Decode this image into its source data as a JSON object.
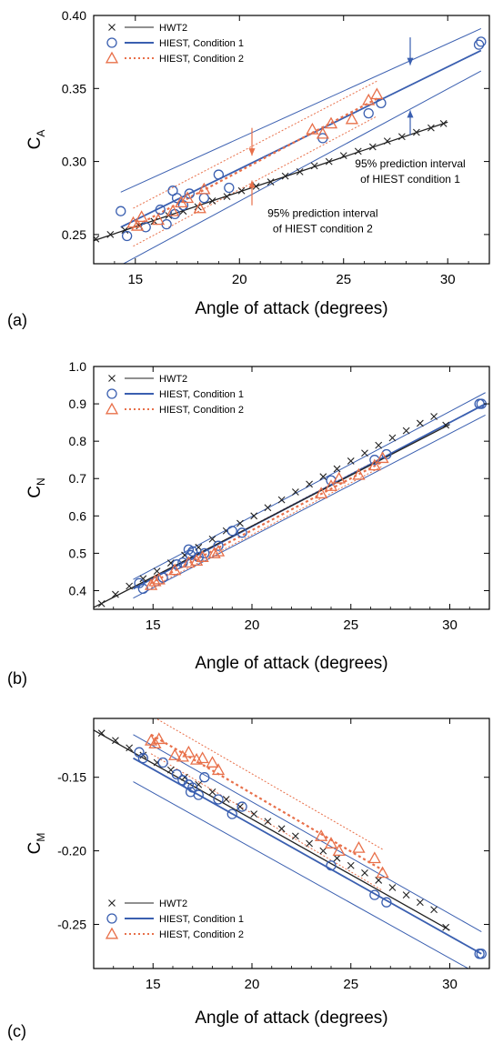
{
  "colors": {
    "hwt2": "#222222",
    "condition1": "#3a5fb0",
    "condition2": "#e8704a",
    "frame": "#000000"
  },
  "chart_data": [
    {
      "panel_label": "(a)",
      "type": "scatter",
      "xlabel": "Angle of attack (degrees)",
      "ylabel_main": "C",
      "ylabel_sub": "A",
      "xlim": [
        13,
        32
      ],
      "ylim": [
        0.23,
        0.4
      ],
      "xticks": [
        15,
        20,
        25,
        30
      ],
      "xtick_labels": [
        "15",
        "20",
        "25",
        "30"
      ],
      "yticks": [
        0.25,
        0.3,
        0.35,
        0.4
      ],
      "ytick_labels": [
        "0.25",
        "0.30",
        "0.35",
        "0.40"
      ],
      "legend_position": "top-left",
      "legend": [
        {
          "marker": "x",
          "line": "thin",
          "label": "HWT2"
        },
        {
          "marker": "circle",
          "line": "solid",
          "label": "HIEST, Condition 1"
        },
        {
          "marker": "triangle",
          "line": "dotted",
          "label": "HIEST, Condition 2"
        }
      ],
      "annotations": [
        {
          "lines": [
            "95% prediction interval",
            "of HIEST condition 1"
          ],
          "x": 28.2,
          "y": 0.296,
          "color": "condition1",
          "arrows": [
            {
              "x": 28.2,
              "y_from": 0.385,
              "y_to": 0.366
            },
            {
              "x": 28.2,
              "y_from": 0.318,
              "y_to": 0.335
            }
          ]
        },
        {
          "lines": [
            "95% prediction interval",
            "of HIEST condition 2"
          ],
          "x": 24.0,
          "y": 0.262,
          "color": "condition2",
          "arrows": [
            {
              "x": 20.6,
              "y_from": 0.323,
              "y_to": 0.304
            },
            {
              "x": 20.6,
              "y_from": 0.27,
              "y_to": 0.287
            }
          ]
        }
      ],
      "hwt2_points": {
        "x": [
          12.4,
          13.1,
          13.8,
          14.5,
          15.2,
          15.9,
          16.6,
          17.3,
          18.0,
          18.7,
          19.4,
          20.1,
          20.8,
          21.5,
          22.2,
          22.9,
          23.6,
          24.3,
          25.0,
          25.7,
          26.4,
          27.1,
          27.8,
          28.5,
          29.2,
          29.8
        ],
        "y": [
          0.244,
          0.247,
          0.25,
          0.253,
          0.256,
          0.259,
          0.263,
          0.266,
          0.269,
          0.273,
          0.276,
          0.28,
          0.283,
          0.286,
          0.29,
          0.293,
          0.297,
          0.3,
          0.304,
          0.307,
          0.31,
          0.314,
          0.317,
          0.32,
          0.323,
          0.326
        ]
      },
      "hwt2_fit": {
        "x": [
          12.0,
          30.0
        ],
        "y": [
          0.241,
          0.327
        ]
      },
      "condition1_points": {
        "x": [
          14.3,
          14.6,
          15.5,
          16.2,
          16.5,
          16.8,
          16.9,
          17.0,
          17.3,
          17.6,
          18.3,
          19.0,
          19.5,
          24.0,
          26.2,
          26.8,
          31.5,
          31.6
        ],
        "y": [
          0.266,
          0.249,
          0.255,
          0.267,
          0.257,
          0.28,
          0.264,
          0.275,
          0.27,
          0.278,
          0.275,
          0.291,
          0.282,
          0.316,
          0.333,
          0.34,
          0.38,
          0.382
        ]
      },
      "condition1_fit": {
        "x": [
          14.3,
          31.6
        ],
        "y": [
          0.255,
          0.376
        ]
      },
      "condition1_band": {
        "upper": [
          0.279,
          0.391
        ],
        "lower": [
          0.229,
          0.362
        ]
      },
      "condition2_points": {
        "x": [
          14.9,
          15.1,
          15.3,
          16.1,
          16.8,
          17.2,
          17.5,
          18.1,
          18.3,
          23.5,
          24.0,
          24.4,
          25.4,
          26.2,
          26.6
        ],
        "y": [
          0.258,
          0.256,
          0.262,
          0.26,
          0.266,
          0.272,
          0.275,
          0.268,
          0.281,
          0.322,
          0.319,
          0.326,
          0.329,
          0.342,
          0.346
        ]
      },
      "condition2_fit": {
        "x": [
          14.9,
          26.6
        ],
        "y": [
          0.255,
          0.343
        ]
      },
      "condition2_band": {
        "upper": [
          0.268,
          0.355
        ],
        "lower": [
          0.242,
          0.331
        ]
      }
    },
    {
      "panel_label": "(b)",
      "type": "scatter",
      "xlabel": "Angle of attack (degrees)",
      "ylabel_main": "C",
      "ylabel_sub": "N",
      "xlim": [
        12,
        32
      ],
      "ylim": [
        0.35,
        1.0
      ],
      "xticks": [
        15,
        20,
        25,
        30
      ],
      "xtick_labels": [
        "15",
        "20",
        "25",
        "30"
      ],
      "yticks": [
        0.4,
        0.5,
        0.6,
        0.7,
        0.8,
        0.9,
        1.0
      ],
      "ytick_labels": [
        "0.4",
        "0.5",
        "0.6",
        "0.7",
        "0.8",
        "0.9",
        "1.0"
      ],
      "legend_position": "top-left",
      "legend": [
        {
          "marker": "x",
          "line": "thin",
          "label": "HWT2"
        },
        {
          "marker": "circle",
          "line": "solid",
          "label": "HIEST, Condition 1"
        },
        {
          "marker": "triangle",
          "line": "dotted",
          "label": "HIEST, Condition 2"
        }
      ],
      "annotations": [],
      "hwt2_points": {
        "x": [
          12.4,
          13.1,
          13.8,
          14.5,
          15.2,
          15.9,
          16.6,
          17.3,
          18.0,
          18.7,
          19.4,
          20.1,
          20.8,
          21.5,
          22.2,
          22.9,
          23.6,
          24.3,
          25.0,
          25.7,
          26.4,
          27.1,
          27.8,
          28.5,
          29.2,
          29.8
        ],
        "y": [
          0.365,
          0.39,
          0.412,
          0.432,
          0.452,
          0.474,
          0.495,
          0.516,
          0.538,
          0.56,
          0.58,
          0.6,
          0.622,
          0.643,
          0.664,
          0.685,
          0.705,
          0.726,
          0.747,
          0.768,
          0.789,
          0.809,
          0.828,
          0.848,
          0.866,
          0.843
        ]
      },
      "hwt2_fit": {
        "x": [
          12.0,
          30.0
        ],
        "y": [
          0.355,
          0.845
        ]
      },
      "condition1_points": {
        "x": [
          14.3,
          14.5,
          15.5,
          16.2,
          16.5,
          16.8,
          16.9,
          17.0,
          17.3,
          17.6,
          18.3,
          19.0,
          19.5,
          24.0,
          26.2,
          26.8,
          31.5,
          31.6
        ],
        "y": [
          0.42,
          0.405,
          0.435,
          0.47,
          0.475,
          0.51,
          0.495,
          0.505,
          0.49,
          0.5,
          0.52,
          0.56,
          0.555,
          0.695,
          0.75,
          0.765,
          0.9,
          0.9
        ]
      },
      "condition1_fit": {
        "x": [
          14.0,
          31.8
        ],
        "y": [
          0.405,
          0.9
        ]
      },
      "condition1_band": {
        "upper": [
          0.43,
          0.93
        ],
        "lower": [
          0.38,
          0.87
        ]
      },
      "condition2_points": {
        "x": [
          14.9,
          15.1,
          15.3,
          16.1,
          16.8,
          17.2,
          17.5,
          18.1,
          18.3,
          23.5,
          24.0,
          24.4,
          25.4,
          26.2,
          26.6
        ],
        "y": [
          0.415,
          0.425,
          0.43,
          0.455,
          0.475,
          0.48,
          0.49,
          0.5,
          0.505,
          0.66,
          0.68,
          0.7,
          0.71,
          0.735,
          0.755
        ]
      },
      "condition2_fit": {
        "x": [
          14.9,
          26.6
        ],
        "y": [
          0.42,
          0.745
        ]
      },
      "condition2_band": {
        "upper": [
          0.432,
          0.757
        ],
        "lower": [
          0.408,
          0.733
        ]
      }
    },
    {
      "panel_label": "(c)",
      "type": "scatter",
      "xlabel": "Angle of attack (degrees)",
      "ylabel_main": "C",
      "ylabel_sub": "M",
      "xlim": [
        12,
        32
      ],
      "ylim": [
        -0.28,
        -0.11
      ],
      "xticks": [
        15,
        20,
        25,
        30
      ],
      "xtick_labels": [
        "15",
        "20",
        "25",
        "30"
      ],
      "yticks": [
        -0.25,
        -0.2,
        -0.15
      ],
      "ytick_labels": [
        "-0.25",
        "-0.20",
        "-0.15"
      ],
      "legend_position": "bottom-left",
      "legend": [
        {
          "marker": "x",
          "line": "thin",
          "label": "HWT2"
        },
        {
          "marker": "circle",
          "line": "solid",
          "label": "HIEST, Condition 1"
        },
        {
          "marker": "triangle",
          "line": "dotted",
          "label": "HIEST, Condition 2"
        }
      ],
      "annotations": [],
      "hwt2_points": {
        "x": [
          12.4,
          13.1,
          13.8,
          14.5,
          15.2,
          15.9,
          16.6,
          17.3,
          18.0,
          18.7,
          19.4,
          20.1,
          20.8,
          21.5,
          22.2,
          22.9,
          23.6,
          24.3,
          25.0,
          25.7,
          26.4,
          27.1,
          27.8,
          28.5,
          29.2,
          29.8
        ],
        "y": [
          -0.12,
          -0.125,
          -0.13,
          -0.135,
          -0.14,
          -0.145,
          -0.15,
          -0.155,
          -0.16,
          -0.165,
          -0.17,
          -0.175,
          -0.18,
          -0.185,
          -0.19,
          -0.195,
          -0.2,
          -0.205,
          -0.21,
          -0.215,
          -0.22,
          -0.225,
          -0.23,
          -0.235,
          -0.24,
          -0.252
        ]
      },
      "hwt2_fit": {
        "x": [
          12.0,
          30.0
        ],
        "y": [
          -0.118,
          -0.254
        ]
      },
      "condition1_points": {
        "x": [
          14.3,
          14.5,
          15.5,
          16.2,
          16.5,
          16.8,
          16.9,
          17.0,
          17.3,
          17.6,
          18.3,
          19.0,
          19.5,
          24.0,
          26.2,
          26.8,
          31.5,
          31.6
        ],
        "y": [
          -0.133,
          -0.137,
          -0.14,
          -0.148,
          -0.152,
          -0.155,
          -0.16,
          -0.157,
          -0.162,
          -0.15,
          -0.165,
          -0.175,
          -0.17,
          -0.21,
          -0.23,
          -0.235,
          -0.27,
          -0.27
        ]
      },
      "condition1_fit": {
        "x": [
          14.0,
          31.6
        ],
        "y": [
          -0.137,
          -0.27
        ]
      },
      "condition1_band": {
        "upper": [
          -0.121,
          -0.255
        ],
        "lower": [
          -0.153,
          -0.285
        ]
      },
      "condition2_points": {
        "x": [
          14.9,
          15.1,
          15.3,
          16.1,
          16.5,
          16.8,
          17.2,
          17.5,
          18.0,
          18.3,
          23.5,
          24.0,
          24.4,
          25.4,
          26.2,
          26.6
        ],
        "y": [
          -0.125,
          -0.127,
          -0.124,
          -0.135,
          -0.136,
          -0.133,
          -0.138,
          -0.137,
          -0.14,
          -0.145,
          -0.19,
          -0.195,
          -0.2,
          -0.198,
          -0.205,
          -0.215
        ]
      },
      "condition2_fit": {
        "x": [
          14.9,
          26.6
        ],
        "y": [
          -0.121,
          -0.213
        ]
      },
      "condition2_band": {
        "upper": [
          -0.108,
          -0.199
        ],
        "lower": [
          -0.134,
          -0.227
        ]
      }
    }
  ]
}
